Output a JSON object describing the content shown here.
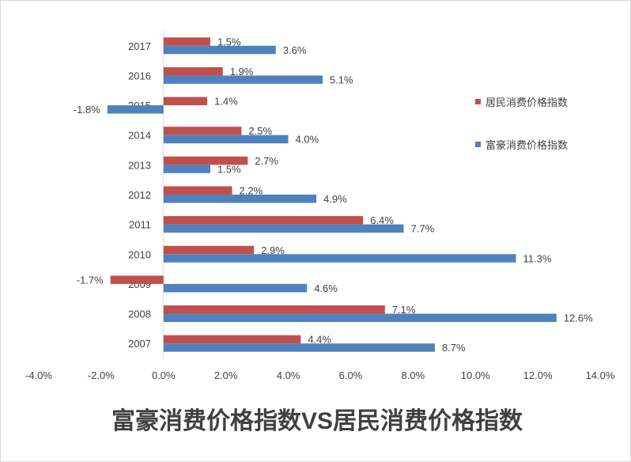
{
  "chart_data": {
    "type": "bar",
    "orientation": "horizontal",
    "title": "富豪消费价格指数VS居民消费价格指数",
    "categories": [
      "2017",
      "2016",
      "2015",
      "2014",
      "2013",
      "2012",
      "2011",
      "2010",
      "2009",
      "2008",
      "2007"
    ],
    "series": [
      {
        "name": "居民消费价格指数",
        "color": "#C0504D",
        "values": [
          1.5,
          1.9,
          1.4,
          2.5,
          2.7,
          2.2,
          6.4,
          2.9,
          -1.7,
          7.1,
          4.4
        ]
      },
      {
        "name": "富豪消费价格指数",
        "color": "#4F81BD",
        "values": [
          3.6,
          5.1,
          -1.8,
          4.0,
          1.5,
          4.9,
          7.7,
          11.3,
          4.6,
          12.6,
          8.7
        ]
      }
    ],
    "xlim": [
      -4,
      14
    ],
    "xticks": [
      -4,
      -2,
      0,
      2,
      4,
      6,
      8,
      10,
      12,
      14
    ],
    "tick_format": "percent_1dp",
    "legend_position": "right",
    "grid": false
  }
}
